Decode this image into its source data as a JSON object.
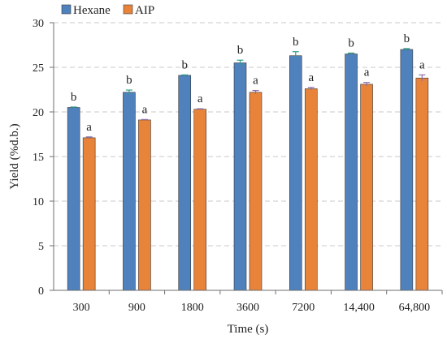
{
  "chart_data": {
    "type": "bar",
    "title": "",
    "xlabel": "Time (s)",
    "ylabel": "Yield (%d.b.)",
    "categories": [
      "300",
      "900",
      "1800",
      "3600",
      "7200",
      "14,400",
      "64,800"
    ],
    "ylim": [
      0,
      30
    ],
    "yticks": [
      "0",
      "5",
      "10",
      "15",
      "20",
      "25",
      "30"
    ],
    "grid": true,
    "legend_position": "top-left",
    "series": [
      {
        "name": "Hexane",
        "color": "#4f81bd",
        "error_color": "#2f9e8c",
        "values": [
          20.5,
          22.2,
          24.1,
          25.5,
          26.3,
          26.5,
          27.0
        ],
        "errors": [
          0.05,
          0.25,
          0.05,
          0.3,
          0.45,
          0.1,
          0.1
        ],
        "significance": [
          "b",
          "b",
          "b",
          "b",
          "b",
          "b",
          "b"
        ]
      },
      {
        "name": "AIP",
        "color": "#e8833a",
        "error_color": "#8e6fa8",
        "values": [
          17.1,
          19.1,
          20.3,
          22.2,
          22.6,
          23.1,
          23.8
        ],
        "errors": [
          0.1,
          0.05,
          0.05,
          0.2,
          0.15,
          0.2,
          0.35
        ],
        "significance": [
          "a",
          "a",
          "a",
          "a",
          "a",
          "a",
          "a"
        ]
      }
    ]
  }
}
